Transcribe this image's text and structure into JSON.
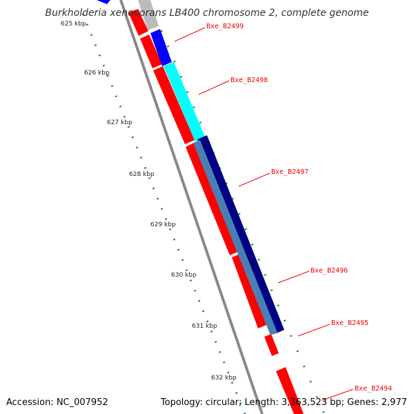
{
  "title": "Burkholderia xenovorans LB400 chromosome 2, complete genome",
  "footer": {
    "accession": "Accession: NC_007952",
    "summary": "Topology: circular; Length: 3,363,523 bp; Genes: 2,977"
  },
  "ticks": [
    {
      "label": "625 kbp"
    },
    {
      "label": "626 kbp"
    },
    {
      "label": "627 kbp"
    },
    {
      "label": "628 kbp"
    },
    {
      "label": "629 kbp"
    },
    {
      "label": "630 kbp"
    },
    {
      "label": "631 kbp"
    },
    {
      "label": "632 kbp"
    }
  ],
  "genes": [
    {
      "name": "Bxe_B2499"
    },
    {
      "name": "Bxe_B2498"
    },
    {
      "name": "Bxe_B2497"
    },
    {
      "name": "Bxe_B2496"
    },
    {
      "name": "Bxe_B2495"
    },
    {
      "name": "Bxe_B2494"
    }
  ],
  "colors": {
    "backbone": "#888888",
    "cds": "#ff0000",
    "label": "#ee0000",
    "tick": "#228b22",
    "blue": "#0000ff",
    "cyan": "#00ffff",
    "navy": "#000080",
    "steelblue": "#4a7fb5",
    "lightgray": "#bbbbbb"
  }
}
